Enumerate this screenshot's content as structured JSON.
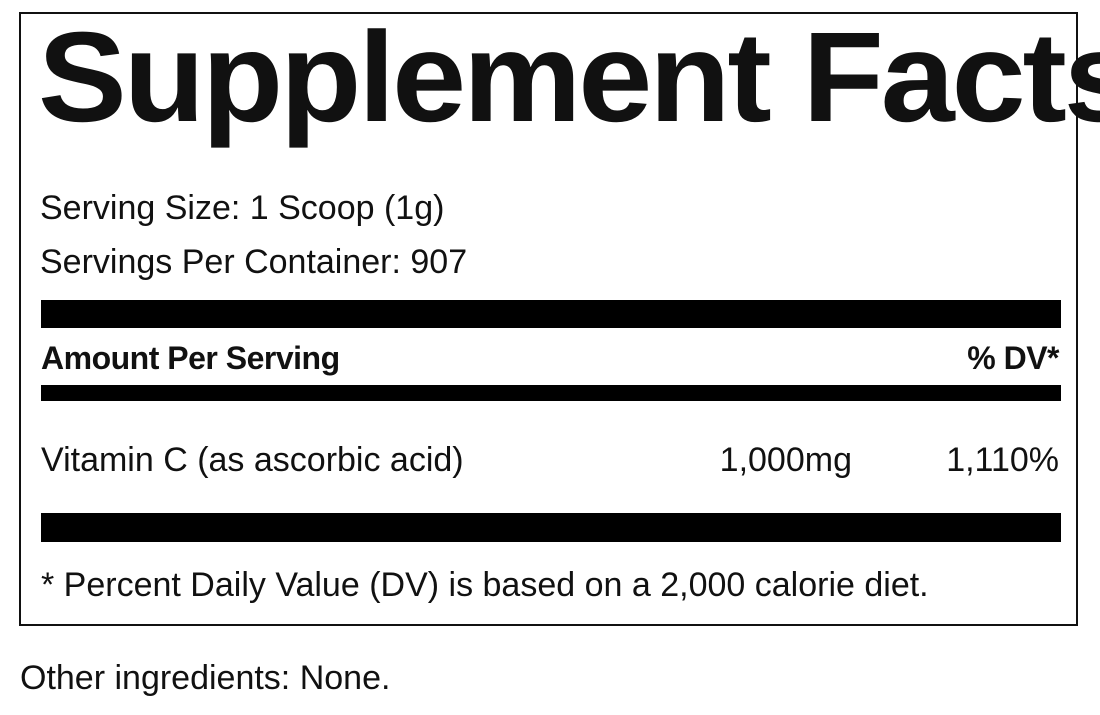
{
  "title": "Supplement Facts",
  "serving_size": "Serving Size: 1 Scoop (1g)",
  "servings_per_container": "Servings Per Container: 907",
  "header": {
    "amount": "Amount Per Serving",
    "dv": "% DV*"
  },
  "nutrients": [
    {
      "name": "Vitamin C (as ascorbic acid)",
      "amount": "1,000mg",
      "dv": "1,110%"
    }
  ],
  "footnote": "* Percent Daily Value (DV) is based on a 2,000 calorie diet.",
  "other_ingredients": "Other ingredients: None."
}
